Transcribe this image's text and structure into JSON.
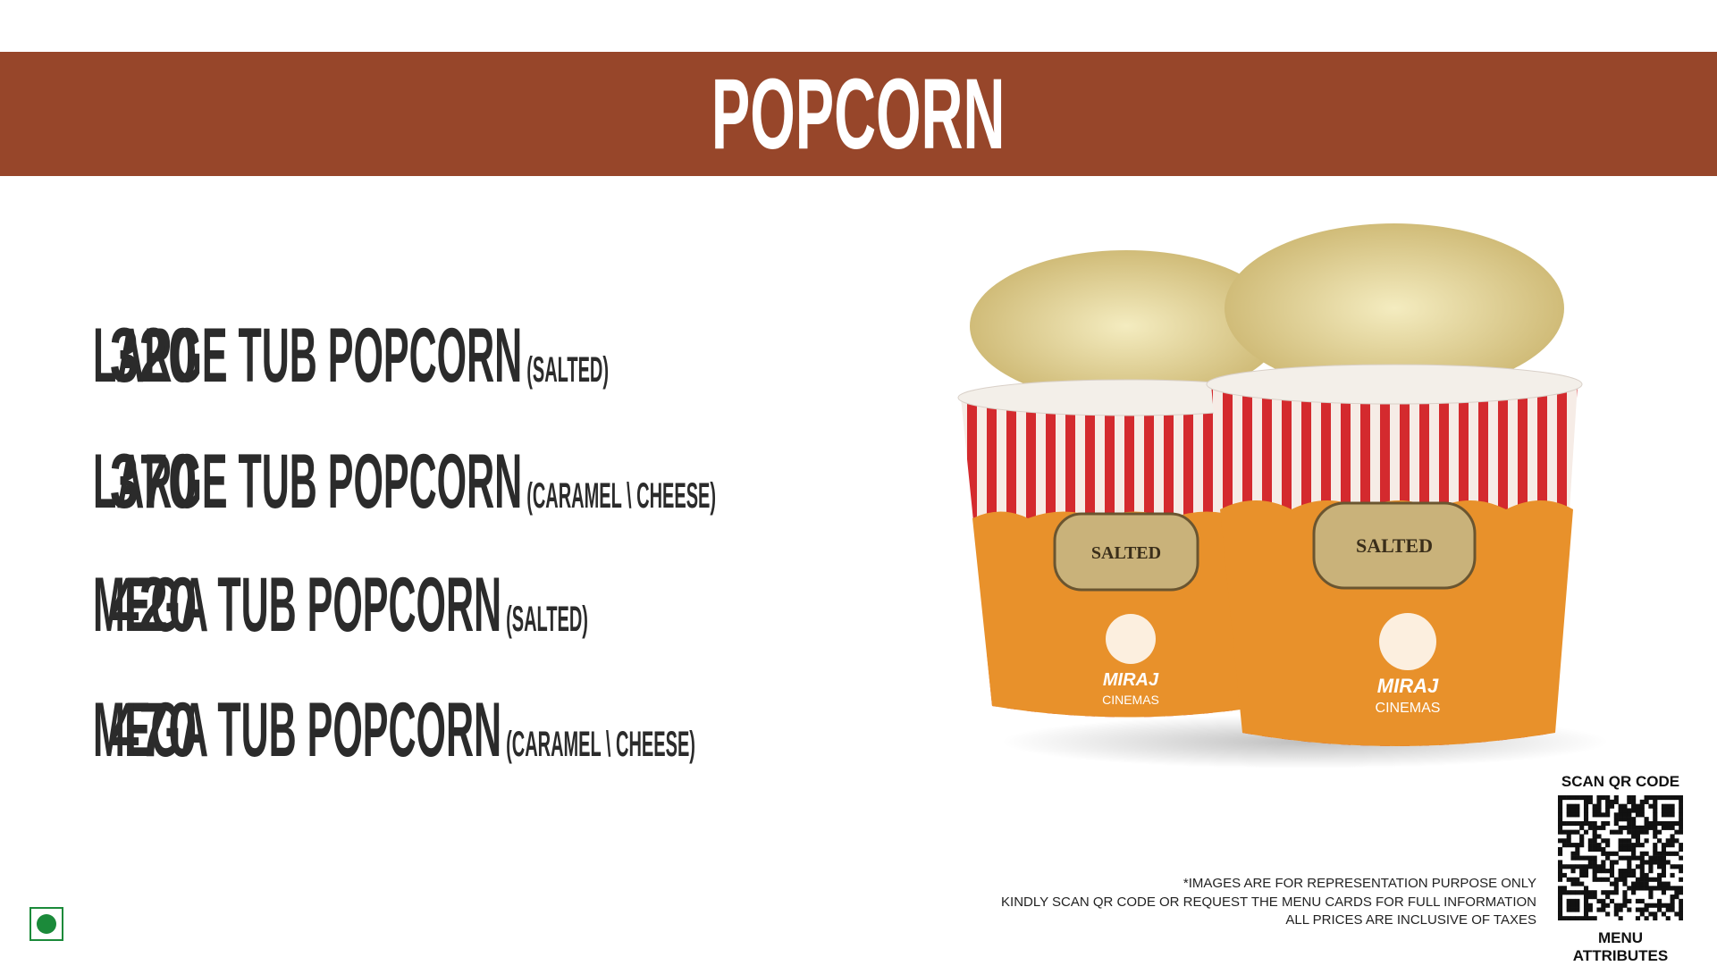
{
  "header": {
    "title": "POPCORN"
  },
  "items": [
    {
      "name": "LARGE TUB POPCORN",
      "variant": "(SALTED)",
      "price": 320
    },
    {
      "name": "LARGE TUB POPCORN",
      "variant": "(CARAMEL \\ CHEESE)",
      "price": 370
    },
    {
      "name": "MEGA TUB POPCORN",
      "variant": "(SALTED)",
      "price": 420
    },
    {
      "name": "MEGA TUB POPCORN",
      "variant": "(CARAMEL \\ CHEESE)",
      "price": 470
    }
  ],
  "image": {
    "label": "SALTED",
    "brand": "MIRAJ",
    "brand_sub": "CINEMAS"
  },
  "notes": [
    "*IMAGES ARE FOR REPRESENTATION PURPOSE ONLY",
    "KINDLY SCAN QR CODE OR REQUEST THE MENU CARDS FOR FULL INFORMATION",
    "ALL PRICES ARE INCLUSIVE OF TAXES"
  ],
  "qr": {
    "heading": "SCAN QR CODE",
    "caption": "MENU ATTRIBUTES"
  }
}
